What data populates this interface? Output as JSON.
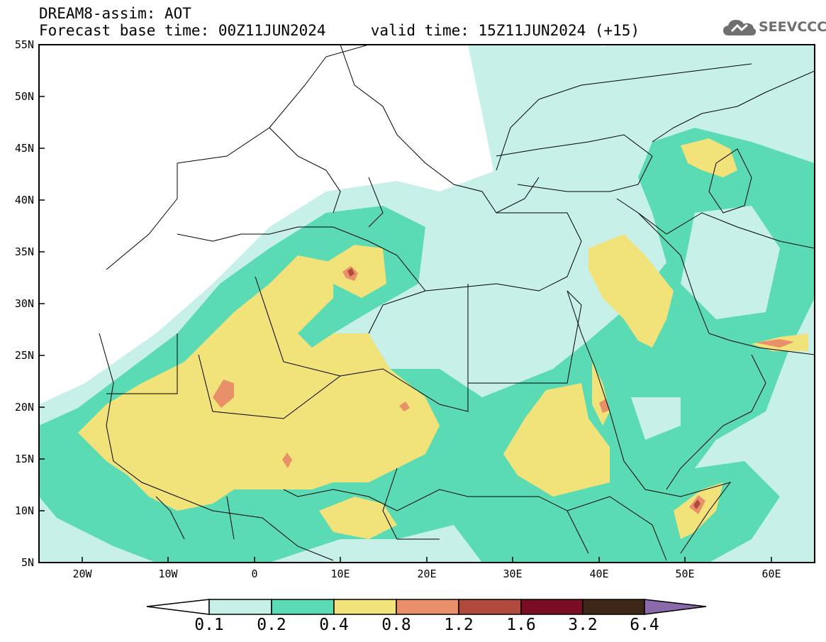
{
  "header": {
    "line1": "DREAM8-assim: AOT",
    "line2": "Forecast base time: 00Z11JUN2024     valid time: 15Z11JUN2024 (+15)"
  },
  "logo": {
    "text": "SEEVCCC",
    "icon": "cloud-icon"
  },
  "map": {
    "lat_labels": [
      "55N",
      "50N",
      "45N",
      "40N",
      "35N",
      "30N",
      "25N",
      "20N",
      "15N",
      "10N",
      "5N"
    ],
    "lon_labels": [
      "20W",
      "10W",
      "0",
      "10E",
      "20E",
      "30E",
      "40E",
      "50E",
      "60E"
    ],
    "lat_range": [
      5,
      55
    ],
    "lon_range": [
      -25,
      65
    ]
  },
  "colorbar": {
    "labels": [
      "0.1",
      "0.2",
      "0.4",
      "0.8",
      "1.2",
      "1.6",
      "3.2",
      "6.4"
    ],
    "colors": [
      "#c7f0e8",
      "#5bdbb4",
      "#f2e27a",
      "#e8906a",
      "#b04a3c",
      "#7a0d24",
      "#3d2817",
      "#8a6aaa"
    ]
  },
  "legend_colors": {
    "c01": "#c7f0e8",
    "c02": "#5bdbb4",
    "c04": "#f2e27a",
    "c08": "#e8906a",
    "c12": "#b04a3c"
  }
}
